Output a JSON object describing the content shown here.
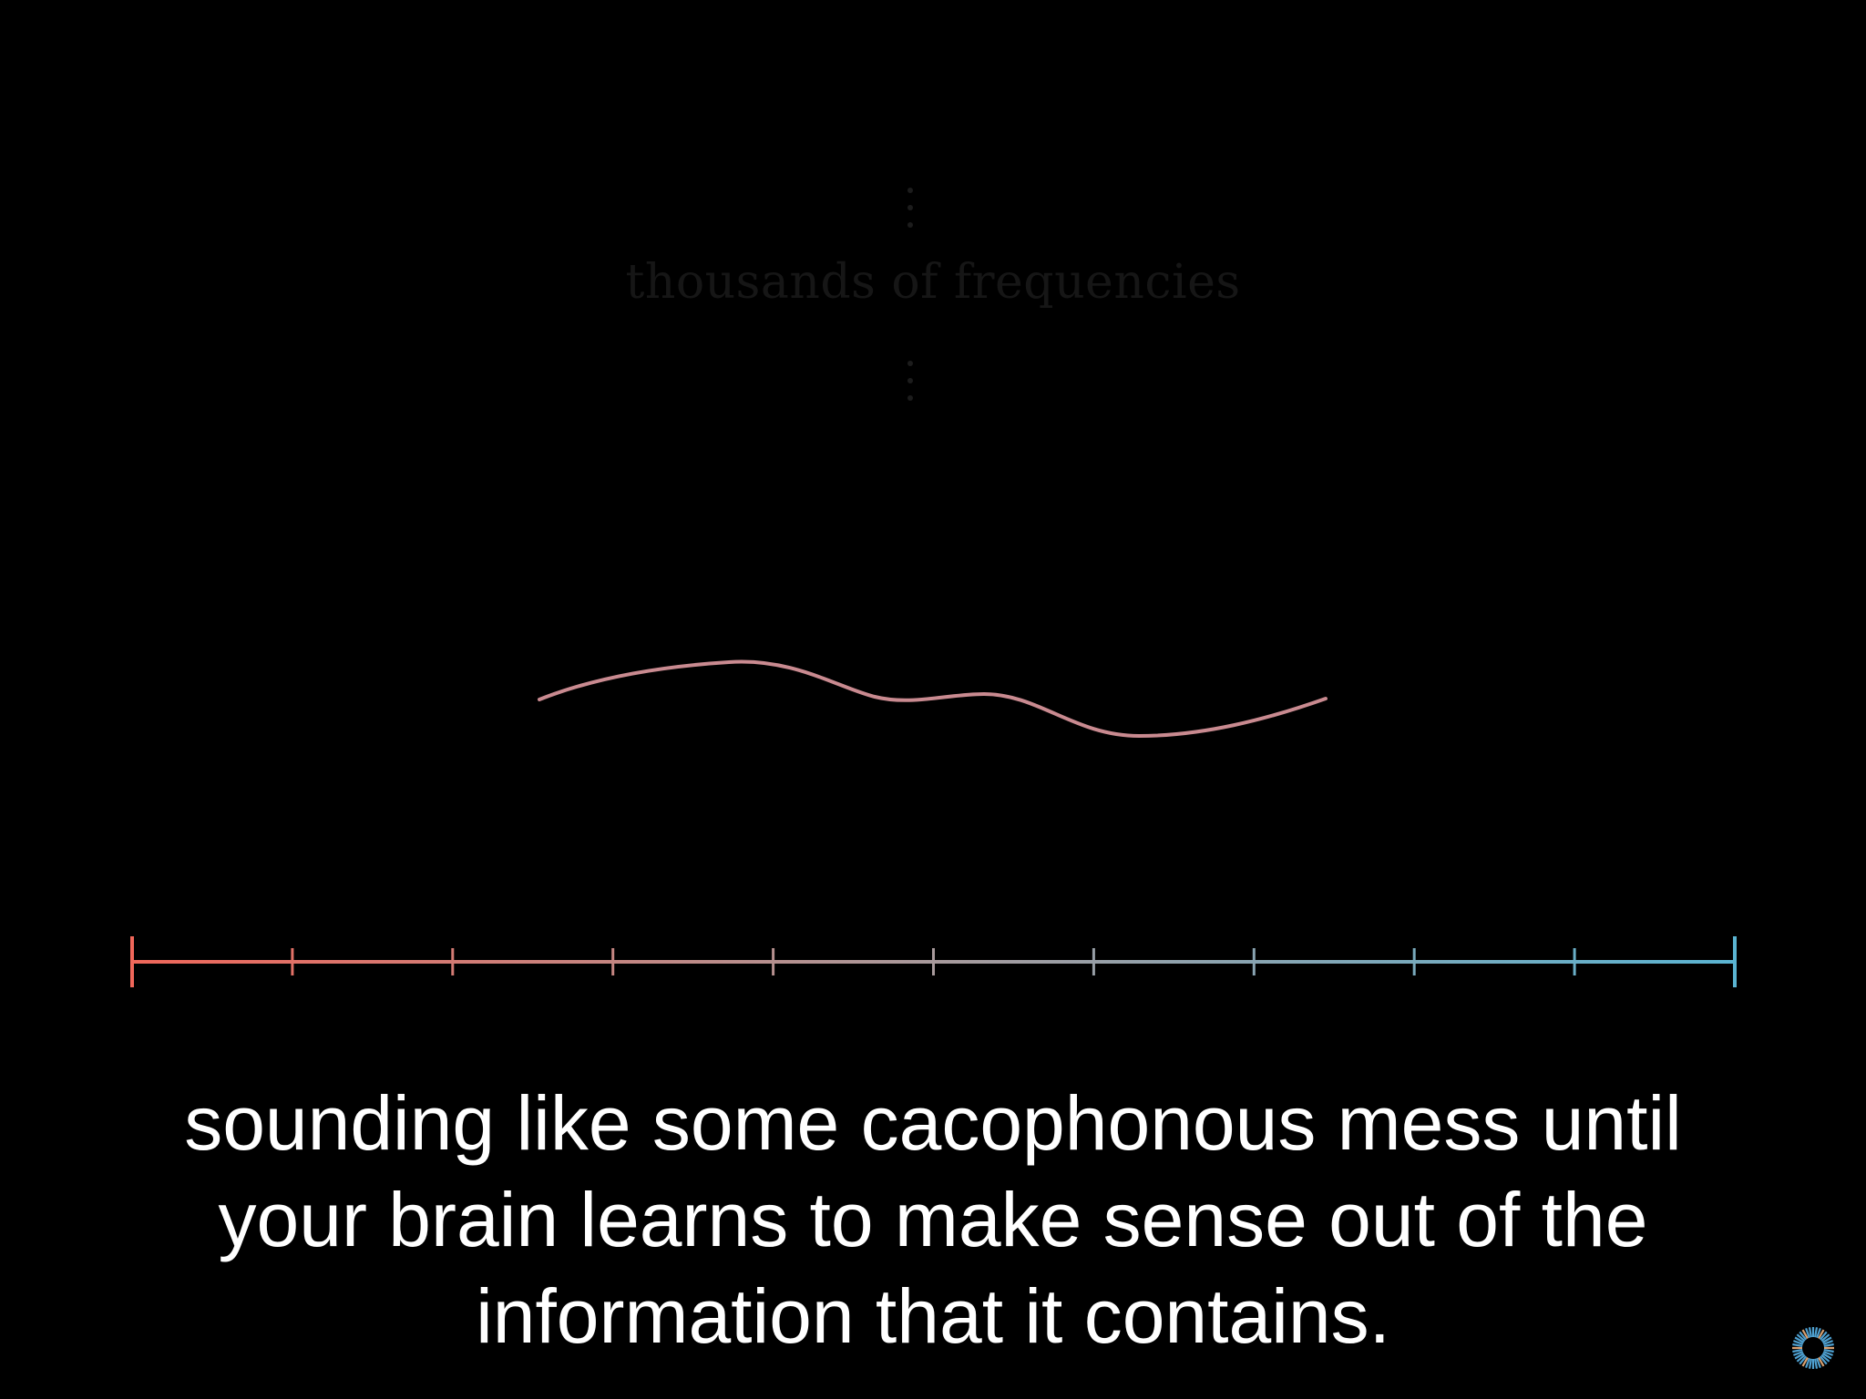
{
  "overlay": {
    "label": "thousands of frequencies"
  },
  "subtitle": {
    "lines": [
      "sounding like some cacophonous mess until",
      "your brain learns to make sense out of the",
      "information that it contains."
    ]
  },
  "colors": {
    "background": "#000000",
    "axis_start": "#f0675a",
    "axis_mid": "#a89a9c",
    "axis_end": "#5ab4d2",
    "wave": "#c98a90",
    "caption": "#ffffff",
    "faded_text": "#161616"
  },
  "axis": {
    "tick_count": 11
  },
  "icons": {
    "loader": "loading-spinner-icon",
    "ellipsis": "vertical-ellipsis-icon"
  }
}
